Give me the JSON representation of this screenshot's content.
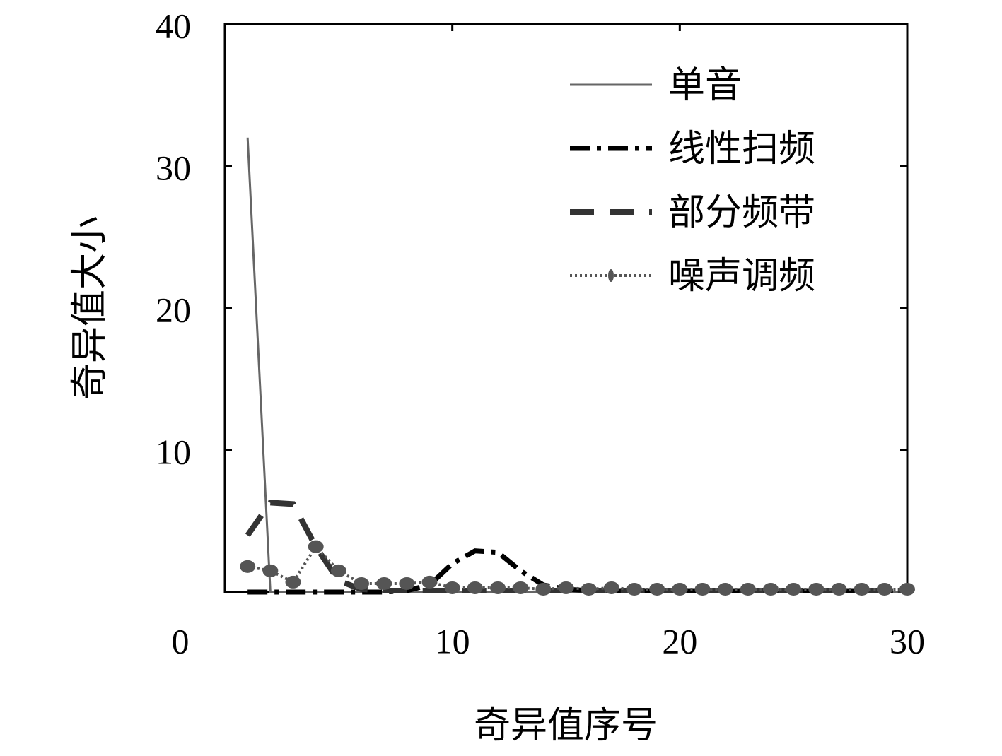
{
  "chart_data": {
    "type": "line",
    "xlabel": "奇异值序号",
    "ylabel": "奇异值大小",
    "x": [
      1,
      2,
      3,
      4,
      5,
      6,
      7,
      8,
      9,
      10,
      11,
      12,
      13,
      14,
      15,
      16,
      17,
      18,
      19,
      20,
      21,
      22,
      23,
      24,
      25,
      26,
      27,
      28,
      29,
      30
    ],
    "series": [
      {
        "name": "单音",
        "color": "#666666",
        "style": "solid",
        "values": [
          32,
          0,
          0,
          0,
          0,
          0,
          0,
          0,
          0,
          0,
          0,
          0,
          0,
          0,
          0,
          0,
          0,
          0,
          0,
          0,
          0,
          0,
          0,
          0,
          0,
          0,
          0,
          0,
          0,
          0
        ]
      },
      {
        "name": "线性扫频",
        "color": "#000000",
        "style": "dashdot",
        "values": [
          0,
          0,
          0,
          0,
          0,
          0,
          0,
          0.1,
          0.5,
          2,
          2.9,
          2.8,
          1.5,
          0.5,
          0.2,
          0.1,
          0.1,
          0.1,
          0.1,
          0.1,
          0.1,
          0.1,
          0.1,
          0.1,
          0.1,
          0.1,
          0.1,
          0.1,
          0.1,
          0.1
        ]
      },
      {
        "name": "部分频带",
        "color": "#333333",
        "style": "dashed",
        "values": [
          4,
          6.3,
          6.2,
          3.2,
          0.8,
          0.2,
          0.1,
          0.1,
          0.1,
          0.1,
          0.1,
          0.1,
          0.1,
          0.1,
          0.1,
          0.1,
          0.1,
          0.1,
          0.1,
          0.1,
          0.1,
          0.1,
          0.1,
          0.1,
          0.1,
          0.1,
          0.1,
          0.1,
          0.1,
          0.1
        ]
      },
      {
        "name": "噪声调频",
        "color": "#555555",
        "style": "dotted",
        "values": [
          1.8,
          1.5,
          0.7,
          3.2,
          1.5,
          0.6,
          0.6,
          0.6,
          0.7,
          0.3,
          0.3,
          0.3,
          0.3,
          0.2,
          0.3,
          0.2,
          0.3,
          0.2,
          0.2,
          0.2,
          0.2,
          0.2,
          0.2,
          0.2,
          0.2,
          0.2,
          0.2,
          0.2,
          0.2,
          0.2
        ]
      }
    ],
    "xlim": [
      0,
      30
    ],
    "ylim": [
      0,
      40
    ],
    "xticks": [
      0,
      10,
      20,
      30
    ],
    "yticks": [
      10,
      20,
      30,
      40
    ]
  }
}
